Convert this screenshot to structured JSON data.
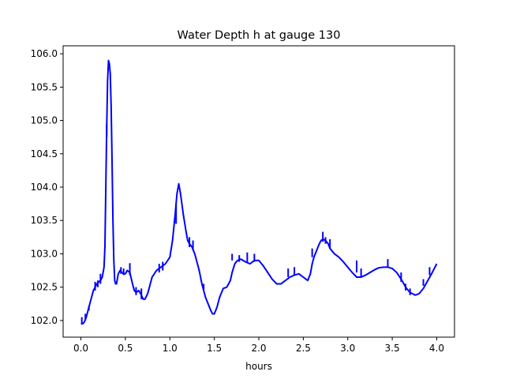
{
  "chart_data": {
    "type": "line",
    "title": "Water Depth h at gauge 130",
    "xlabel": "hours",
    "ylabel": "",
    "xlim": [
      -0.2,
      4.2
    ],
    "ylim": [
      101.75,
      106.12
    ],
    "x_ticks": [
      0.0,
      0.5,
      1.0,
      1.5,
      2.0,
      2.5,
      3.0,
      3.5,
      4.0
    ],
    "x_tick_labels": [
      "0.0",
      "0.5",
      "1.0",
      "1.5",
      "2.0",
      "2.5",
      "3.0",
      "3.5",
      "4.0"
    ],
    "y_ticks": [
      102.0,
      102.5,
      103.0,
      103.5,
      104.0,
      104.5,
      105.0,
      105.5,
      106.0
    ],
    "y_tick_labels": [
      "102.0",
      "102.5",
      "103.0",
      "103.5",
      "104.0",
      "104.5",
      "105.0",
      "105.5",
      "106.0"
    ],
    "grid": false,
    "series": [
      {
        "color": "#0000ff",
        "x": [
          0.0,
          0.02,
          0.04,
          0.06,
          0.08,
          0.1,
          0.12,
          0.14,
          0.16,
          0.18,
          0.2,
          0.22,
          0.24,
          0.26,
          0.27,
          0.28,
          0.29,
          0.3,
          0.31,
          0.32,
          0.33,
          0.34,
          0.35,
          0.36,
          0.37,
          0.38,
          0.39,
          0.4,
          0.42,
          0.44,
          0.46,
          0.48,
          0.5,
          0.52,
          0.55,
          0.58,
          0.6,
          0.62,
          0.65,
          0.68,
          0.7,
          0.72,
          0.75,
          0.78,
          0.8,
          0.85,
          0.9,
          0.95,
          1.0,
          1.03,
          1.06,
          1.08,
          1.1,
          1.12,
          1.15,
          1.18,
          1.2,
          1.22,
          1.25,
          1.28,
          1.3,
          1.33,
          1.36,
          1.38,
          1.4,
          1.43,
          1.46,
          1.48,
          1.5,
          1.53,
          1.56,
          1.6,
          1.64,
          1.68,
          1.7,
          1.73,
          1.76,
          1.8,
          1.85,
          1.9,
          1.95,
          2.0,
          2.05,
          2.1,
          2.15,
          2.2,
          2.25,
          2.3,
          2.35,
          2.4,
          2.45,
          2.5,
          2.55,
          2.58,
          2.6,
          2.62,
          2.65,
          2.68,
          2.7,
          2.72,
          2.75,
          2.78,
          2.8,
          2.85,
          2.9,
          2.95,
          3.0,
          3.05,
          3.1,
          3.15,
          3.2,
          3.25,
          3.3,
          3.35,
          3.4,
          3.45,
          3.5,
          3.55,
          3.6,
          3.63,
          3.65,
          3.68,
          3.7,
          3.73,
          3.76,
          3.8,
          3.85,
          3.9,
          3.95,
          4.0
        ],
        "y": [
          101.95,
          101.95,
          101.98,
          102.05,
          102.15,
          102.25,
          102.35,
          102.45,
          102.5,
          102.55,
          102.58,
          102.6,
          102.65,
          102.8,
          103.1,
          104.0,
          104.9,
          105.6,
          105.9,
          105.85,
          105.7,
          105.2,
          104.4,
          103.5,
          102.9,
          102.6,
          102.55,
          102.55,
          102.7,
          102.75,
          102.72,
          102.7,
          102.7,
          102.75,
          102.72,
          102.55,
          102.45,
          102.42,
          102.45,
          102.38,
          102.32,
          102.32,
          102.4,
          102.55,
          102.65,
          102.75,
          102.8,
          102.85,
          102.95,
          103.2,
          103.6,
          103.9,
          104.05,
          103.9,
          103.6,
          103.35,
          103.2,
          103.15,
          103.1,
          103.0,
          102.9,
          102.75,
          102.55,
          102.45,
          102.35,
          102.25,
          102.15,
          102.1,
          102.1,
          102.2,
          102.35,
          102.48,
          102.5,
          102.6,
          102.72,
          102.85,
          102.9,
          102.92,
          102.88,
          102.85,
          102.9,
          102.9,
          102.82,
          102.72,
          102.62,
          102.55,
          102.55,
          102.6,
          102.65,
          102.68,
          102.7,
          102.65,
          102.6,
          102.7,
          102.85,
          102.95,
          103.05,
          103.15,
          103.2,
          103.22,
          103.2,
          103.15,
          103.08,
          103.0,
          102.95,
          102.88,
          102.8,
          102.72,
          102.65,
          102.65,
          102.68,
          102.72,
          102.76,
          102.79,
          102.8,
          102.8,
          102.78,
          102.72,
          102.62,
          102.55,
          102.5,
          102.45,
          102.42,
          102.4,
          102.38,
          102.4,
          102.48,
          102.6,
          102.72,
          102.85
        ],
        "spikes": [
          {
            "x": 0.01,
            "y_from": 101.95,
            "y_to": 102.05
          },
          {
            "x": 0.05,
            "y_from": 102.0,
            "y_to": 102.1
          },
          {
            "x": 0.09,
            "y_from": 102.15,
            "y_to": 102.22
          },
          {
            "x": 0.16,
            "y_from": 102.45,
            "y_to": 102.58
          },
          {
            "x": 0.19,
            "y_from": 102.5,
            "y_to": 102.6
          },
          {
            "x": 0.22,
            "y_from": 102.55,
            "y_to": 102.7
          },
          {
            "x": 0.29,
            "y_from": 104.75,
            "y_to": 104.95
          },
          {
            "x": 0.45,
            "y_from": 102.7,
            "y_to": 102.8
          },
          {
            "x": 0.48,
            "y_from": 102.68,
            "y_to": 102.78
          },
          {
            "x": 0.55,
            "y_from": 102.68,
            "y_to": 102.86
          },
          {
            "x": 0.62,
            "y_from": 102.38,
            "y_to": 102.5
          },
          {
            "x": 0.68,
            "y_from": 102.32,
            "y_to": 102.48
          },
          {
            "x": 0.88,
            "y_from": 102.72,
            "y_to": 102.85
          },
          {
            "x": 0.92,
            "y_from": 102.75,
            "y_to": 102.88
          },
          {
            "x": 1.07,
            "y_from": 103.45,
            "y_to": 103.75
          },
          {
            "x": 1.22,
            "y_from": 103.1,
            "y_to": 103.25
          },
          {
            "x": 1.26,
            "y_from": 103.05,
            "y_to": 103.2
          },
          {
            "x": 1.38,
            "y_from": 102.45,
            "y_to": 102.55
          },
          {
            "x": 1.7,
            "y_from": 102.9,
            "y_to": 103.0
          },
          {
            "x": 1.78,
            "y_from": 102.88,
            "y_to": 102.98
          },
          {
            "x": 1.87,
            "y_from": 102.88,
            "y_to": 103.02
          },
          {
            "x": 1.95,
            "y_from": 102.88,
            "y_to": 103.0
          },
          {
            "x": 2.33,
            "y_from": 102.65,
            "y_to": 102.78
          },
          {
            "x": 2.4,
            "y_from": 102.68,
            "y_to": 102.8
          },
          {
            "x": 2.6,
            "y_from": 102.95,
            "y_to": 103.08
          },
          {
            "x": 2.72,
            "y_from": 103.18,
            "y_to": 103.33
          },
          {
            "x": 2.75,
            "y_from": 103.15,
            "y_to": 103.25
          },
          {
            "x": 2.8,
            "y_from": 103.08,
            "y_to": 103.22
          },
          {
            "x": 3.1,
            "y_from": 102.72,
            "y_to": 102.9
          },
          {
            "x": 3.15,
            "y_from": 102.65,
            "y_to": 102.78
          },
          {
            "x": 3.45,
            "y_from": 102.8,
            "y_to": 102.92
          },
          {
            "x": 3.6,
            "y_from": 102.58,
            "y_to": 102.72
          },
          {
            "x": 3.65,
            "y_from": 102.45,
            "y_to": 102.55
          },
          {
            "x": 3.7,
            "y_from": 102.38,
            "y_to": 102.48
          },
          {
            "x": 3.85,
            "y_from": 102.52,
            "y_to": 102.62
          },
          {
            "x": 3.92,
            "y_from": 102.68,
            "y_to": 102.8
          }
        ]
      }
    ]
  }
}
